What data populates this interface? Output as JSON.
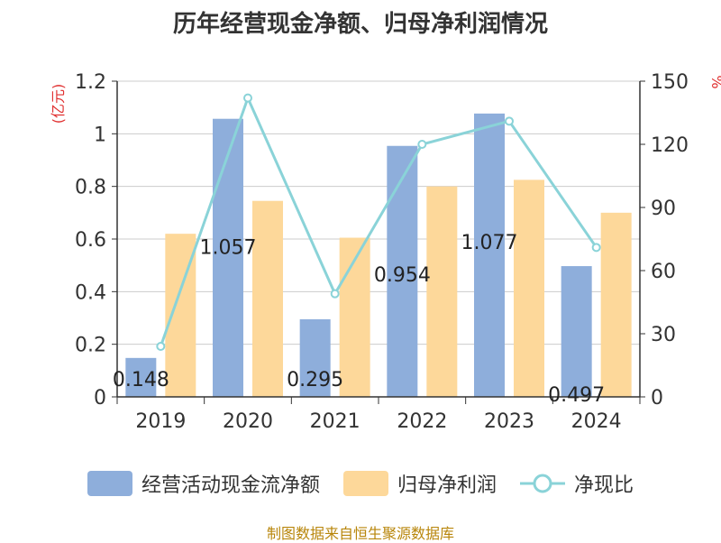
{
  "chart_data": {
    "type": "bar",
    "title": "历年经营现金净额、归母净利润情况",
    "categories": [
      "2019",
      "2020",
      "2021",
      "2022",
      "2023",
      "2024"
    ],
    "y_left": {
      "label": "(亿元)",
      "ticks": [
        "0",
        "0.2",
        "0.4",
        "0.6",
        "0.8",
        "1",
        "1.2"
      ],
      "ylim": [
        0,
        1.2
      ]
    },
    "y_right": {
      "label": "%",
      "ticks": [
        "0",
        "30",
        "60",
        "90",
        "120",
        "150"
      ],
      "ylim": [
        0,
        150
      ]
    },
    "series": [
      {
        "name": "经营活动现金流净额",
        "type": "bar",
        "color": "#8eaedb",
        "values": [
          0.148,
          1.057,
          0.295,
          0.954,
          1.077,
          0.497
        ],
        "labels": [
          "0.148",
          "1.057",
          "0.295",
          "0.954",
          "1.077",
          "0.497"
        ]
      },
      {
        "name": "归母净利润",
        "type": "bar",
        "color": "#fdd89a",
        "values": [
          0.62,
          0.745,
          0.605,
          0.8,
          0.825,
          0.7
        ]
      },
      {
        "name": "净现比",
        "type": "line",
        "color": "#8ad3d8",
        "axis": "right",
        "values": [
          24,
          142,
          49,
          120,
          131,
          71
        ]
      }
    ],
    "grid": true,
    "legend": "bottom"
  },
  "source_note": "制图数据来自恒生聚源数据库"
}
